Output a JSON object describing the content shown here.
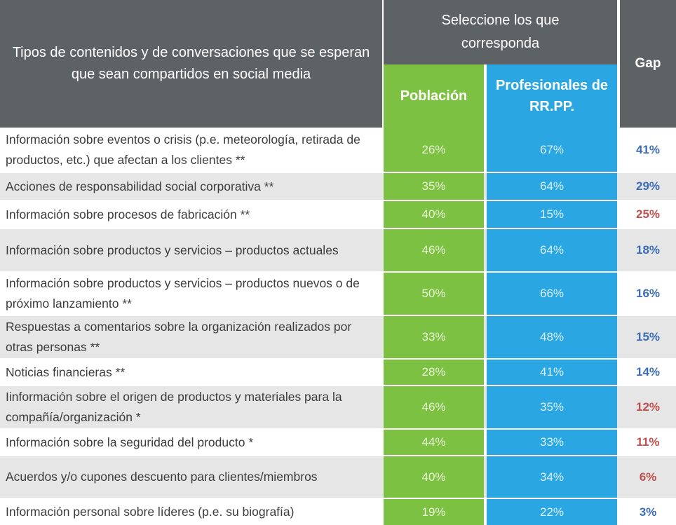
{
  "header": {
    "types_label": "Tipos de contenidos y de conversaciones que se esperan que sean compartidos en social media",
    "select_label": "Seleccione los que corresponda",
    "poblacion_label": "Población",
    "profesionales_label": "Profesionales de RR.PP.",
    "gap_label": "Gap"
  },
  "colors": {
    "header": "#5d6264",
    "poblacion": "#7dc142",
    "profesionales": "#2aa7e3",
    "gap_positive": "#3d6db5",
    "gap_negative": "#c0504d",
    "row_alt": "#e6e6e6"
  },
  "chart_data": {
    "type": "table",
    "columns": [
      "Tipos de contenidos y de conversaciones que se esperan que sean compartidos en social media",
      "Población",
      "Profesionales de RR.PP.",
      "Gap"
    ],
    "rows": [
      {
        "label": "Información sobre eventos o crisis (p.e. meteorología, retirada de productos, etc.) que afectan a los clientes **",
        "poblacion": "26%",
        "profesionales": "67%",
        "gap": "41%",
        "gap_color": "blue"
      },
      {
        "label": "Acciones de responsabilidad social corporativa **",
        "poblacion": "35%",
        "profesionales": "64%",
        "gap": "29%",
        "gap_color": "blue"
      },
      {
        "label": "Información sobre procesos de fabricación **",
        "poblacion": "40%",
        "profesionales": "15%",
        "gap": "25%",
        "gap_color": "red"
      },
      {
        "label": "Información sobre productos y servicios – productos actuales",
        "poblacion": "46%",
        "profesionales": "64%",
        "gap": "18%",
        "gap_color": "blue"
      },
      {
        "label": "Información sobre productos y servicios – productos nuevos o de próximo lanzamiento **",
        "poblacion": "50%",
        "profesionales": "66%",
        "gap": "16%",
        "gap_color": "blue"
      },
      {
        "label": "Respuestas a comentarios sobre la organización realizados por otras personas **",
        "poblacion": "33%",
        "profesionales": "48%",
        "gap": "15%",
        "gap_color": "blue"
      },
      {
        "label": "Noticias financieras **",
        "poblacion": "28%",
        "profesionales": "41%",
        "gap": "14%",
        "gap_color": "blue"
      },
      {
        "label": "Iinformación sobre el origen de productos y materiales para la compañía/organización *",
        "poblacion": "46%",
        "profesionales": "35%",
        "gap": "12%",
        "gap_color": "red"
      },
      {
        "label": "Información sobre la seguridad del producto *",
        "poblacion": "44%",
        "profesionales": "33%",
        "gap": "11%",
        "gap_color": "red"
      },
      {
        "label": "Acuerdos y/o cupones descuento para clientes/miembros",
        "poblacion": "40%",
        "profesionales": "34%",
        "gap": "6%",
        "gap_color": "red"
      },
      {
        "label": "Información personal sobre líderes (p.e. su biografía)",
        "poblacion": "19%",
        "profesionales": "22%",
        "gap": "3%",
        "gap_color": "blue"
      }
    ]
  }
}
